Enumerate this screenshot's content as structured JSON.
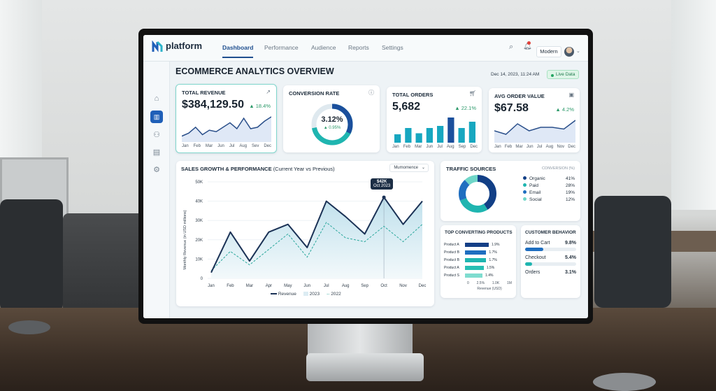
{
  "header": {
    "logo": "platform",
    "nav": [
      "Dashboard",
      "Performance",
      "Audience",
      "Reports",
      "Settings"
    ],
    "active_nav": "Dashboard",
    "theme_select": "Modern",
    "icons": [
      "search-icon",
      "bell-icon",
      "avatar"
    ]
  },
  "sidebar": {
    "icons": [
      "home-icon",
      "chart-icon",
      "users-icon",
      "report-icon",
      "gear-icon",
      "logout-icon"
    ],
    "active": "chart-icon"
  },
  "page": {
    "title": "ECOMMERCE ANALYTICS OVERVIEW",
    "datetime": "Dec 14, 2023, 11:24 AM",
    "live_badge": "Live Data"
  },
  "kpis": {
    "revenue": {
      "title": "TOTAL REVENUE",
      "value": "$384,129.50",
      "delta": "▲ 18.4%",
      "months": [
        "Jan",
        "Feb",
        "Mar",
        "Jun",
        "Jul",
        "Aug",
        "Sev",
        "Dec"
      ],
      "trend": [
        3,
        5,
        9,
        4,
        7,
        6,
        9,
        12,
        8,
        15,
        8,
        9,
        13,
        16
      ]
    },
    "conversion": {
      "title": "CONVERSION RATE",
      "value": "3.12%",
      "delta": "▲ 0.95%",
      "gauge_fraction": 0.72
    },
    "orders": {
      "title": "TOTAL ORDERS",
      "value": "5,682",
      "delta": "▲ 22.1%",
      "months": [
        "Jan",
        "Feb",
        "Mar",
        "Jun",
        "Jul",
        "Aug",
        "Sep",
        "Dec"
      ],
      "bars": [
        4,
        7,
        4.5,
        7,
        8,
        12,
        7,
        10
      ]
    },
    "aov": {
      "title": "AVG ORDER VALUE",
      "value": "$67.58",
      "delta": "▲ 4.2%",
      "months": [
        "Jan",
        "Feb",
        "Mar",
        "Jun",
        "Jul",
        "Aug",
        "Nov",
        "Dec"
      ],
      "trend": [
        6,
        4,
        10,
        6,
        8,
        8,
        7,
        12
      ]
    }
  },
  "chart_data": {
    "type": "line",
    "title": "SALES GROWTH & PERFORMANCE",
    "subtitle": "(Current Year vs Previous)",
    "dropdown": "Mumomence",
    "ylabel": "Monthly Revenue (in USD millions)",
    "ylim": [
      0,
      50000
    ],
    "yticks": [
      "0",
      "10K",
      "20K",
      "30K",
      "40K",
      "50K"
    ],
    "categories": [
      "Jan",
      "Feb",
      "Mar",
      "Apr",
      "May",
      "Jun",
      "Jul",
      "Aug",
      "Sep",
      "Oct",
      "Nov",
      "Dec"
    ],
    "series": [
      {
        "name": "Revenue",
        "values": [
          3000,
          24000,
          9000,
          24000,
          28000,
          16000,
          40000,
          32000,
          23000,
          42000,
          28000,
          40000
        ]
      },
      {
        "name": "2022",
        "values": [
          4000,
          14000,
          7000,
          15000,
          23000,
          11000,
          29000,
          21000,
          19000,
          27000,
          19000,
          28000
        ]
      }
    ],
    "legend": [
      "Revenue",
      "2023",
      "2022"
    ],
    "legend_position": "bottom",
    "tooltip": {
      "value": "$42K",
      "label": "Oct 2023"
    },
    "grid": true
  },
  "traffic": {
    "title": "TRAFFIC SOURCES",
    "col": "CONVERSION (%)",
    "items": [
      {
        "label": "Organic",
        "value": "41%",
        "color": "#123f86"
      },
      {
        "label": "Paid",
        "value": "28%",
        "color": "#1fb5b0"
      },
      {
        "label": "Email",
        "value": "19%",
        "color": "#1f6ec0"
      },
      {
        "label": "Social",
        "value": "12%",
        "color": "#6fd6c8"
      }
    ]
  },
  "products": {
    "title": "TOP CONVERTING PRODUCTS",
    "items": [
      {
        "label": "Product A",
        "value": "1.9%",
        "n": 1.9,
        "color": "#143f86"
      },
      {
        "label": "Product B",
        "value": "1.7%",
        "n": 1.7,
        "color": "#1f6ec0"
      },
      {
        "label": "Product B",
        "value": "1.7%",
        "n": 1.7,
        "color": "#1fb5b0"
      },
      {
        "label": "Product A",
        "value": "1.5%",
        "n": 1.5,
        "color": "#27bfb4"
      },
      {
        "label": "Product S",
        "value": "1.4%",
        "n": 1.4,
        "color": "#7fdccf"
      }
    ],
    "xticks": [
      "0",
      "2.5%",
      "1.0K",
      "1M"
    ],
    "xlabel": "Revenue (USD)"
  },
  "behavior": {
    "title": "CUSTOMER BEHAVIOR",
    "items": [
      {
        "label": "Add to Cart",
        "value": "9.8%",
        "fill": 0.35,
        "color": "#1f6ec0"
      },
      {
        "label": "Checkout",
        "value": "5.4%",
        "fill": 0.14,
        "color": "#1fb5b0"
      },
      {
        "label": "Orders",
        "value": "3.1%"
      }
    ]
  }
}
